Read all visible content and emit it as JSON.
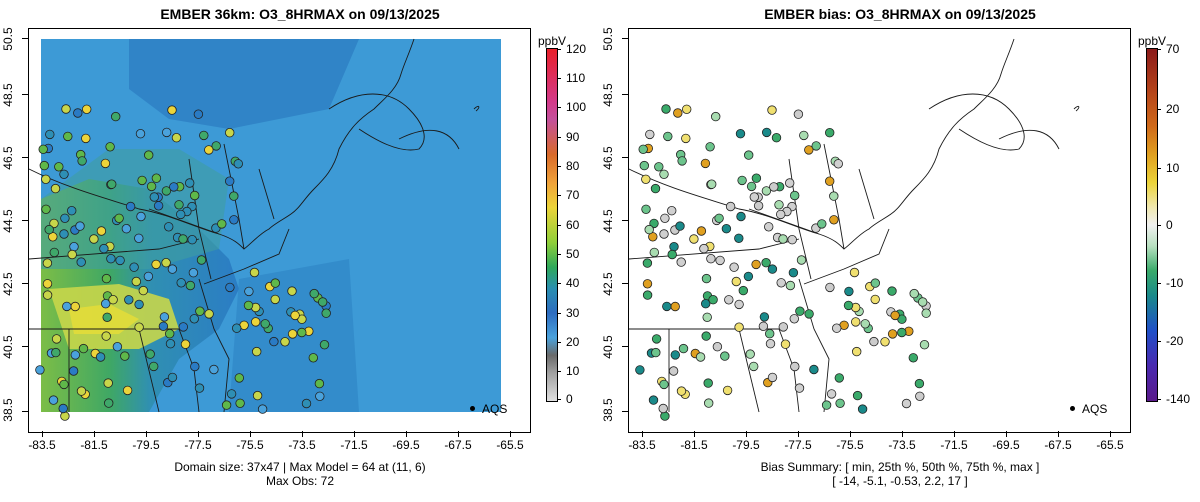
{
  "left_panel": {
    "title": "EMBER 36km: O3_8HRMAX on 09/13/2025",
    "x_ticks": [
      "-83.5",
      "-81.5",
      "-79.5",
      "-77.5",
      "-75.5",
      "-73.5",
      "-71.5",
      "-69.5",
      "-67.5",
      "-65.5"
    ],
    "y_ticks": [
      "38.5",
      "40.5",
      "42.5",
      "44.5",
      "46.5",
      "48.5",
      "50.5"
    ],
    "colorbar": {
      "title": "ppbV",
      "labels": [
        "120",
        "110",
        "100",
        "90",
        "80",
        "70",
        "60",
        "50",
        "40",
        "30",
        "20",
        "10",
        "0"
      ]
    },
    "legend_label": "AQS",
    "caption_line1": "Domain size: 37x47 | Max Model = 64 at (11, 6)",
    "caption_line2": "Max Obs: 72"
  },
  "right_panel": {
    "title": "EMBER bias: O3_8HRMAX on 09/13/2025",
    "x_ticks": [
      "-83.5",
      "-81.5",
      "-79.5",
      "-77.5",
      "-75.5",
      "-73.5",
      "-71.5",
      "-69.5",
      "-67.5",
      "-65.5"
    ],
    "y_ticks": [
      "38.5",
      "40.5",
      "42.5",
      "44.5",
      "46.5",
      "48.5",
      "50.5"
    ],
    "colorbar": {
      "title": "ppbV",
      "labels": [
        "70",
        "20",
        "10",
        "0",
        "-10",
        "-20",
        "-140"
      ]
    },
    "legend_label": "AQS",
    "caption_line1": "Bias Summary: [ min, 25th %, 50th %, 75th %, max ]",
    "caption_line2": "[ -14,   -5.1,   -0.53,   2.2,   17 ]"
  },
  "colors": {
    "ocean": "#3d9ad6",
    "coast": "#1a1a1a"
  }
}
